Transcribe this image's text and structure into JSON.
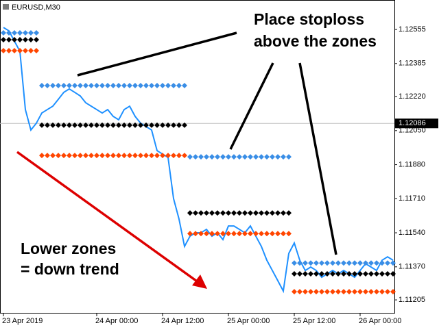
{
  "chart_data": {
    "type": "line",
    "title": "EURUSD,M30",
    "categories": [
      "23 Apr 2019",
      null,
      null,
      null,
      null,
      null,
      null,
      null,
      null,
      null,
      null,
      null,
      null,
      null,
      null,
      null,
      null,
      "24 Apr 00:00",
      null,
      null,
      null,
      null,
      null,
      null,
      null,
      null,
      null,
      null,
      null,
      "24 Apr 12:00",
      null,
      null,
      null,
      null,
      null,
      null,
      null,
      null,
      null,
      null,
      null,
      "25 Apr 00:00",
      null,
      null,
      null,
      null,
      null,
      null,
      null,
      null,
      null,
      null,
      null,
      "25 Apr 12:00",
      null,
      null,
      null,
      null,
      null,
      null,
      null,
      null,
      null,
      null,
      null,
      "26 Apr 00:00",
      null,
      null,
      null,
      null,
      null,
      null
    ],
    "series": [
      {
        "color": "#1e90ff",
        "marker": "none",
        "values": [
          1.12565,
          1.12548,
          1.12497,
          1.12446,
          1.12155,
          1.12053,
          1.12087,
          1.12138,
          1.12155,
          1.12172,
          1.12206,
          1.12241,
          1.12258,
          1.12241,
          1.12223,
          1.12189,
          1.12172,
          1.12155,
          1.12138,
          1.12155,
          1.12121,
          1.12104,
          1.12155,
          1.12172,
          1.12121,
          1.12087,
          1.1207,
          1.12053,
          1.1195,
          1.11933,
          1.11916,
          1.11711,
          1.11608,
          1.11472,
          1.11523,
          1.1154,
          1.1154,
          1.11557,
          1.11523,
          1.1154,
          1.11506,
          1.11574,
          1.11574,
          1.11557,
          1.1154,
          1.11574,
          1.11523,
          1.11472,
          1.11403,
          1.11352,
          1.11301,
          1.11249,
          1.11437,
          1.11489,
          1.11403,
          1.11352,
          1.11369,
          1.11352,
          1.11318,
          1.11335,
          1.11352,
          1.11335,
          1.11352,
          1.11335,
          1.11318,
          1.11352,
          1.11386,
          1.11369,
          1.11352,
          1.11403,
          1.1142,
          1.11403
        ]
      },
      {
        "color": "#3a8ee6",
        "marker": "diamond",
        "values": [
          1.12538,
          1.12538,
          1.12538,
          1.12538,
          1.12538,
          1.12538,
          1.12538,
          1.12275,
          1.12275,
          1.12275,
          1.12275,
          1.12275,
          1.12275,
          1.12275,
          1.12275,
          1.12275,
          1.12275,
          1.12275,
          1.12275,
          1.12275,
          1.12275,
          1.12275,
          1.12275,
          1.12275,
          1.12275,
          1.12275,
          1.12275,
          1.12275,
          1.12275,
          1.12275,
          1.12275,
          1.12275,
          1.12275,
          1.12275,
          1.11919,
          1.11919,
          1.11919,
          1.11919,
          1.11919,
          1.11919,
          1.11919,
          1.11919,
          1.11919,
          1.11919,
          1.11919,
          1.11919,
          1.11919,
          1.11919,
          1.11919,
          1.11919,
          1.11919,
          1.11919,
          1.11919,
          1.11389,
          1.11389,
          1.11389,
          1.11389,
          1.11389,
          1.11389,
          1.11389,
          1.11389,
          1.11389,
          1.11389,
          1.11389,
          1.11389,
          1.11389,
          1.11389,
          1.11389,
          1.11389,
          1.11389,
          1.11389,
          1.11389
        ]
      },
      {
        "color": "#000000",
        "marker": "diamond",
        "values": [
          1.12504,
          1.12504,
          1.12504,
          1.12504,
          1.12504,
          1.12504,
          1.12504,
          1.12077,
          1.12077,
          1.12077,
          1.12077,
          1.12077,
          1.12077,
          1.12077,
          1.12077,
          1.12077,
          1.12077,
          1.12077,
          1.12077,
          1.12077,
          1.12077,
          1.12077,
          1.12077,
          1.12077,
          1.12077,
          1.12077,
          1.12077,
          1.12077,
          1.12077,
          1.12077,
          1.12077,
          1.12077,
          1.12077,
          1.12077,
          1.11639,
          1.11639,
          1.11639,
          1.11639,
          1.11639,
          1.11639,
          1.11639,
          1.11639,
          1.11639,
          1.11639,
          1.11639,
          1.11639,
          1.11639,
          1.11639,
          1.11639,
          1.11639,
          1.11639,
          1.11639,
          1.11639,
          1.11335,
          1.11335,
          1.11335,
          1.11335,
          1.11335,
          1.11335,
          1.11335,
          1.11335,
          1.11335,
          1.11335,
          1.11335,
          1.11335,
          1.11335,
          1.11335,
          1.11335,
          1.11335,
          1.11335,
          1.11335,
          1.11335
        ]
      },
      {
        "color": "#ff4500",
        "marker": "diamond",
        "values": [
          1.12449,
          1.12449,
          1.12449,
          1.12449,
          1.12449,
          1.12449,
          1.12449,
          1.11926,
          1.11926,
          1.11926,
          1.11926,
          1.11926,
          1.11926,
          1.11926,
          1.11926,
          1.11926,
          1.11926,
          1.11926,
          1.11926,
          1.11926,
          1.11926,
          1.11926,
          1.11926,
          1.11926,
          1.11926,
          1.11926,
          1.11926,
          1.11926,
          1.11926,
          1.11926,
          1.11926,
          1.11926,
          1.11926,
          1.11926,
          1.11536,
          1.11536,
          1.11536,
          1.11536,
          1.11536,
          1.11536,
          1.11536,
          1.11536,
          1.11536,
          1.11536,
          1.11536,
          1.11536,
          1.11536,
          1.11536,
          1.11536,
          1.11536,
          1.11536,
          1.11536,
          1.11536,
          1.11246,
          1.11246,
          1.11246,
          1.11246,
          1.11246,
          1.11246,
          1.11246,
          1.11246,
          1.11246,
          1.11246,
          1.11246,
          1.11246,
          1.11246,
          1.11246,
          1.11246,
          1.11246,
          1.11246,
          1.11246,
          1.11246
        ]
      }
    ],
    "ylim": [
      1.11137,
      1.12702
    ],
    "yticks": [
      1.12555,
      1.12385,
      {
        "value": 1.1222,
        "label": "1.12220"
      },
      {
        "value": 1.1205,
        "label": "1.12050"
      },
      {
        "value": 1.1188,
        "label": "1.11880"
      },
      {
        "value": 1.1171,
        "label": "1.11710"
      },
      {
        "value": 1.1154,
        "label": "1.11540"
      },
      {
        "value": 1.1137,
        "label": "1.11370"
      },
      1.11205
    ],
    "current_price": 1.12086,
    "annotations": [
      {
        "lines": [
          "Place stoploss",
          "above the zones"
        ]
      },
      {
        "lines": [
          "Lower zones",
          "= down trend"
        ]
      }
    ]
  }
}
